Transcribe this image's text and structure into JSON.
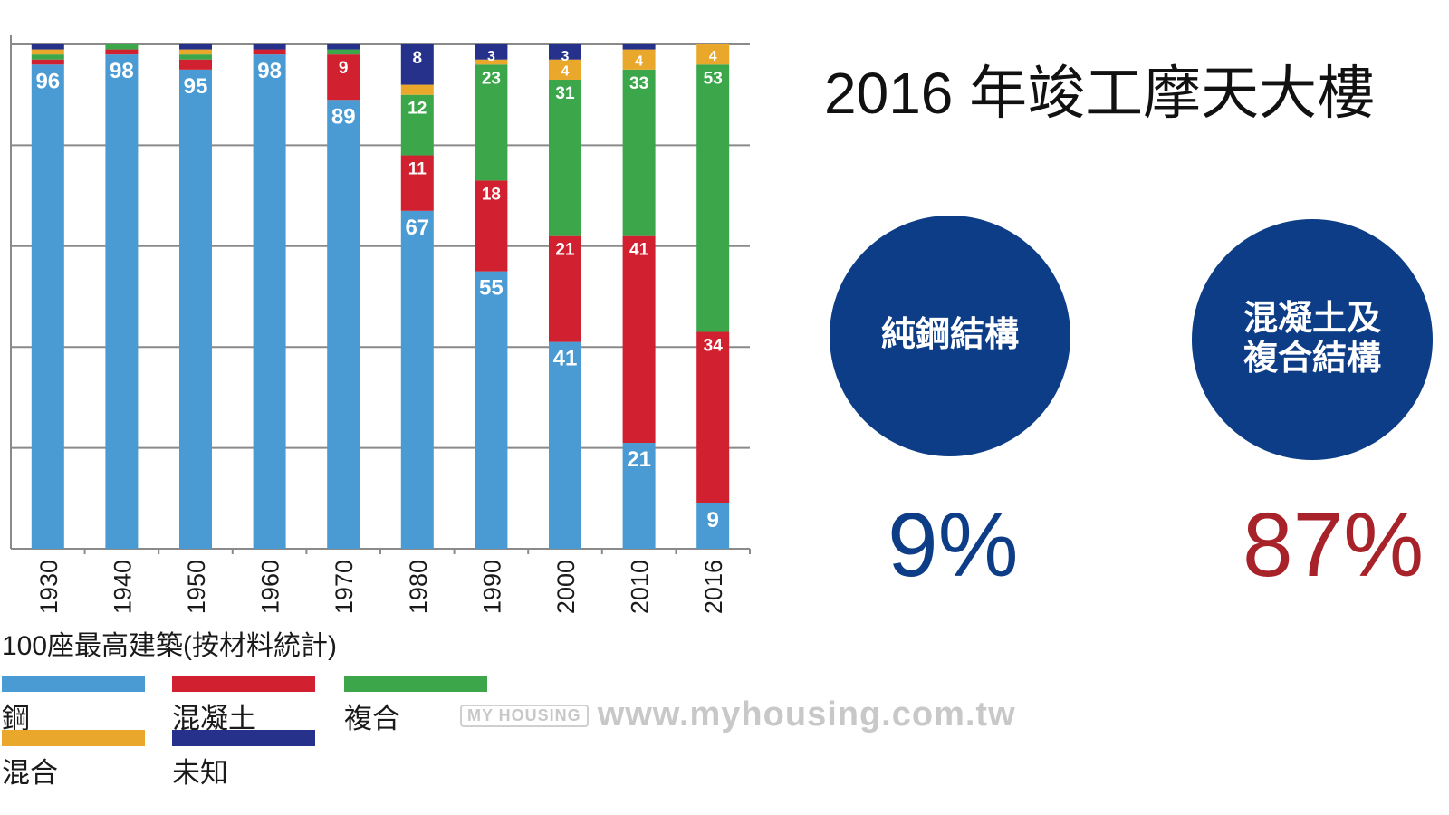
{
  "chart_data": {
    "type": "bar",
    "stacked": true,
    "title": "100座最高建築(按材料統計)",
    "categories": [
      "1930",
      "1940",
      "1950",
      "1960",
      "1970",
      "1980",
      "1990",
      "2000",
      "2010",
      "2016"
    ],
    "ylim": [
      0,
      100
    ],
    "grid": true,
    "legend_position": "bottom",
    "series": [
      {
        "name": "鋼",
        "color": "#4a9bd4",
        "values": [
          96,
          98,
          95,
          98,
          89,
          67,
          55,
          41,
          21,
          9
        ],
        "labels": [
          "96",
          "98",
          "95",
          "98",
          "89",
          "67",
          "55",
          "41",
          "21",
          "9"
        ]
      },
      {
        "name": "混凝土",
        "color": "#d1202f",
        "values": [
          1,
          1,
          2,
          1,
          9,
          11,
          18,
          21,
          41,
          34
        ],
        "labels": [
          "",
          "",
          "",
          "",
          "9",
          "11",
          "18",
          "21",
          "41",
          "34"
        ]
      },
      {
        "name": "複合",
        "color": "#3ba64a",
        "values": [
          1,
          1,
          1,
          0,
          1,
          12,
          23,
          31,
          33,
          53
        ],
        "labels": [
          "",
          "",
          "",
          "",
          "",
          "12",
          "23",
          "31",
          "33",
          "53"
        ]
      },
      {
        "name": "混合",
        "color": "#e9a82c",
        "values": [
          1,
          0,
          1,
          0,
          0,
          2,
          1,
          4,
          4,
          4
        ],
        "labels": [
          "",
          "",
          "",
          "",
          "",
          "",
          "",
          "4",
          "4",
          "4"
        ]
      },
      {
        "name": "未知",
        "color": "#25318a",
        "values": [
          1,
          0,
          1,
          1,
          1,
          8,
          3,
          3,
          1,
          0
        ],
        "labels": [
          "",
          "",
          "",
          "",
          "",
          "8",
          "3",
          "3",
          "",
          ""
        ]
      }
    ]
  },
  "legend": [
    {
      "label": "鋼",
      "color": "#4a9bd4"
    },
    {
      "label": "混凝土",
      "color": "#d1202f"
    },
    {
      "label": "複合",
      "color": "#3ba64a"
    },
    {
      "label": "混合",
      "color": "#e9a82c"
    },
    {
      "label": "未知",
      "color": "#25318a"
    }
  ],
  "headline": "2016 年竣工摩天大樓",
  "stats": {
    "steel": {
      "line1": "純鋼結構",
      "percent": "9%",
      "circle_color": "#0d3d87",
      "percent_color": "#0d3d87"
    },
    "concrete": {
      "line1": "混凝土及",
      "line2": "複合結構",
      "percent": "87%",
      "circle_color": "#0d3d87",
      "percent_color": "#a8222a"
    }
  },
  "watermark": {
    "logo": "MY HOUSING",
    "url": "www.myhousing.com.tw"
  }
}
